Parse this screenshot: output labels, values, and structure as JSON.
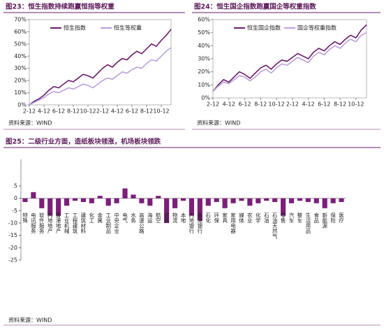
{
  "chart_data": [
    {
      "type": "line",
      "title": "图23：恒生指数持续跑赢恒指等权重",
      "source": "资料来源：WIND",
      "legend": "upper left",
      "grid": false,
      "x": [
        0,
        1,
        2,
        3,
        4,
        5,
        6,
        7,
        8,
        9,
        10,
        11,
        12,
        13,
        14,
        15,
        16,
        17,
        18,
        19,
        20,
        21,
        22,
        23,
        24,
        25,
        26,
        27,
        28,
        29
      ],
      "xlim": [
        0,
        29
      ],
      "xticks": [
        {
          "value": 0,
          "label": "2-12"
        },
        {
          "value": 3,
          "label": "4-12"
        },
        {
          "value": 6,
          "label": "6-12"
        },
        {
          "value": 9,
          "label": "8-12"
        },
        {
          "value": 12,
          "label": "10-12"
        },
        {
          "value": 15,
          "label": "2-12"
        },
        {
          "value": 18,
          "label": "4-12"
        },
        {
          "value": 21,
          "label": "6-12"
        },
        {
          "value": 24,
          "label": "8-12"
        },
        {
          "value": 27,
          "label": "10-12"
        }
      ],
      "ylim": [
        0,
        70
      ],
      "yticks": [
        {
          "value": 0,
          "label": "0%"
        },
        {
          "value": 10,
          "label": "10%"
        },
        {
          "value": 20,
          "label": "20%"
        },
        {
          "value": 30,
          "label": "30%"
        },
        {
          "value": 40,
          "label": "40%"
        },
        {
          "value": 50,
          "label": "50%"
        },
        {
          "value": 60,
          "label": "60%"
        },
        {
          "value": 70,
          "label": "70%"
        }
      ],
      "series": [
        {
          "name": "恒生指数",
          "color": "#6a1b6a",
          "values": [
            0,
            3,
            5,
            8,
            12,
            15,
            14,
            17,
            20,
            19,
            22,
            25,
            24,
            22,
            26,
            30,
            33,
            31,
            35,
            38,
            37,
            41,
            44,
            42,
            46,
            50,
            48,
            53,
            57,
            62
          ]
        },
        {
          "name": "恒生等权重",
          "color": "#b9a0dc",
          "values": [
            0,
            2,
            4,
            6,
            9,
            11,
            10,
            12,
            14,
            13,
            15,
            17,
            16,
            14,
            17,
            20,
            22,
            21,
            24,
            27,
            26,
            29,
            31,
            30,
            34,
            37,
            36,
            40,
            44,
            47
          ]
        }
      ]
    },
    {
      "type": "line",
      "title": "图24：恒生国企指数跑赢国企等权重指数",
      "source": "资料来源：WIND",
      "legend": "upper left",
      "grid": false,
      "x": [
        0,
        1,
        2,
        3,
        4,
        5,
        6,
        7,
        8,
        9,
        10,
        11,
        12,
        13,
        14,
        15,
        16,
        17,
        18,
        19,
        20,
        21,
        22,
        23,
        24,
        25,
        26,
        27,
        28,
        29
      ],
      "xlim": [
        0,
        29
      ],
      "xticks": [
        {
          "value": 0,
          "label": "2-12"
        },
        {
          "value": 3,
          "label": "4-12"
        },
        {
          "value": 6,
          "label": "6-12"
        },
        {
          "value": 9,
          "label": "8-12"
        },
        {
          "value": 12,
          "label": "10-12"
        },
        {
          "value": 15,
          "label": "2-12"
        },
        {
          "value": 18,
          "label": "4-12"
        },
        {
          "value": 21,
          "label": "6-12"
        },
        {
          "value": 24,
          "label": "8-12"
        },
        {
          "value": 27,
          "label": "10-12"
        }
      ],
      "ylim": [
        0,
        60
      ],
      "yticks": [
        {
          "value": 0,
          "label": "0%"
        },
        {
          "value": 10,
          "label": "10%"
        },
        {
          "value": 20,
          "label": "20%"
        },
        {
          "value": 30,
          "label": "30%"
        },
        {
          "value": 40,
          "label": "40%"
        },
        {
          "value": 50,
          "label": "50%"
        },
        {
          "value": 60,
          "label": "60%"
        }
      ],
      "series": [
        {
          "name": "恒生国企指数",
          "color": "#6a1b6a",
          "values": [
            5,
            10,
            14,
            12,
            16,
            20,
            18,
            15,
            19,
            23,
            25,
            22,
            26,
            29,
            28,
            31,
            34,
            32,
            30,
            35,
            38,
            36,
            40,
            43,
            41,
            45,
            48,
            46,
            52,
            56
          ]
        },
        {
          "name": "国企等权重指数",
          "color": "#b9a0dc",
          "values": [
            5,
            9,
            12,
            11,
            14,
            17,
            16,
            13,
            16,
            20,
            22,
            19,
            23,
            26,
            25,
            28,
            31,
            29,
            27,
            32,
            35,
            33,
            37,
            40,
            38,
            42,
            45,
            43,
            48,
            50
          ]
        }
      ]
    },
    {
      "type": "bar",
      "title": "图25：二级行业方面，造纸板块领涨，机场板块领跌",
      "source": "资料来源：WIND",
      "color": "#7b1f7a",
      "grid": false,
      "categories": [
        "特殊",
        "电讯服务",
        "软件服务",
        "内地地产",
        "香港地产",
        "工业机械",
        "工程建筑",
        "建筑材料",
        "化工",
        "金属",
        "工业制品",
        "中央企业",
        "电气",
        "水务",
        "高速公路",
        "海运",
        "航空",
        "铁路",
        "物流",
        "本地",
        "内地银行",
        "香港银行",
        "石化",
        "环保",
        "家具",
        "家用电器",
        "媒体",
        "农业",
        "化学",
        "石油",
        "石油天然气",
        "零售",
        "汽车",
        "整车",
        "生活用品",
        "食品",
        "新能源",
        "保险",
        "医疗"
      ],
      "values": [
        -1.5,
        2.5,
        -4,
        -7,
        -7,
        -3,
        -1,
        -1.5,
        -2,
        1,
        -3,
        -2,
        4,
        1.5,
        -2,
        -3,
        1,
        -10,
        -4,
        -1,
        -7,
        -9,
        -3,
        -1.5,
        -4,
        -2,
        -1,
        -3,
        -2,
        -1,
        -1.5,
        -7,
        -2,
        -1,
        -1.5,
        -2,
        -4,
        -2,
        -1.5
      ],
      "ylim": [
        -25,
        5
      ],
      "yticks": [
        5,
        0,
        -5,
        -10,
        -15,
        -20,
        -25
      ]
    }
  ]
}
